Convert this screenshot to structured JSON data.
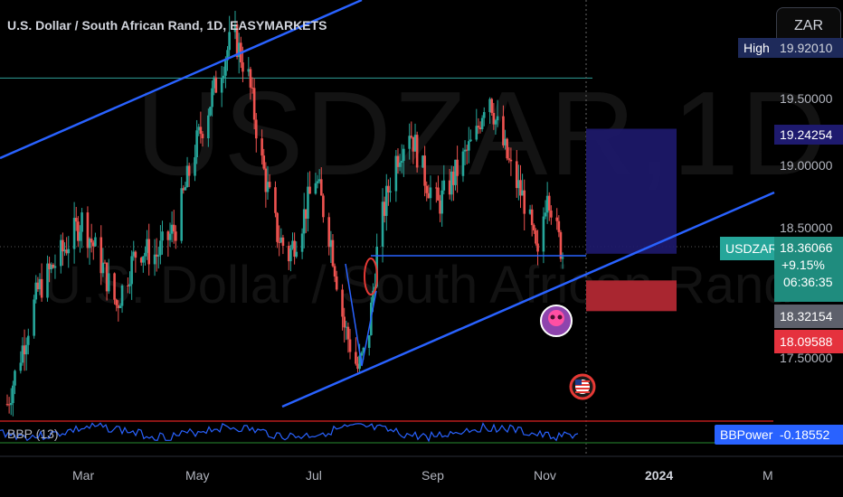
{
  "header": {
    "title": "U.S. Dollar / South African Rand, 1D, EASYMARKETS"
  },
  "watermark": {
    "symbol_tf": "USDZAR,1D",
    "name": "U.S. Dollar / South African Rand"
  },
  "currency_box": "ZAR",
  "price_axis": {
    "ticks": [
      "19.50000",
      "19.00000",
      "18.50000",
      "17.50000"
    ],
    "high_label": "High",
    "high_value": "19.92010",
    "target_value": "19.24254",
    "symbol": "USDZAR",
    "last_price": "18.36066",
    "change_pct": "+9.15%",
    "countdown": "06:36:35",
    "level_gray": "18.32154",
    "stop_value": "18.09588"
  },
  "time_axis": {
    "months": [
      "Mar",
      "May",
      "Jul",
      "Sep",
      "Nov",
      "2024",
      "M"
    ]
  },
  "indicator": {
    "name": "BBP (13)",
    "label": "BBPower",
    "value": "-0.18552"
  },
  "colors": {
    "up": "#26a69a",
    "down": "#ef5350",
    "trendline": "#2962ff",
    "target_zone": "#1e1a6e",
    "stop_zone": "#b22833",
    "indicator_line": "#2962ff"
  },
  "chart_data": {
    "type": "candlestick",
    "title": "U.S. Dollar / South African Rand, 1D, EASYMARKETS",
    "ylim": [
      17.25,
      20.1
    ],
    "x_range": [
      "2023-01-30",
      "2024-03-05"
    ],
    "anchors": [
      [
        "2023-01-30",
        17.3
      ],
      [
        "2023-02-05",
        17.6
      ],
      [
        "2023-02-15",
        18.1
      ],
      [
        "2023-03-01",
        18.4
      ],
      [
        "2023-03-10",
        18.6
      ],
      [
        "2023-03-20",
        18.3
      ],
      [
        "2023-03-28",
        18.0
      ],
      [
        "2023-04-08",
        18.4
      ],
      [
        "2023-04-18",
        18.35
      ],
      [
        "2023-04-28",
        18.55
      ],
      [
        "2023-05-08",
        19.1
      ],
      [
        "2023-05-20",
        19.6
      ],
      [
        "2023-05-28",
        19.92
      ],
      [
        "2023-06-05",
        19.6
      ],
      [
        "2023-06-12",
        19.0
      ],
      [
        "2023-06-20",
        18.5
      ],
      [
        "2023-06-26",
        18.35
      ],
      [
        "2023-07-02",
        18.55
      ],
      [
        "2023-07-10",
        18.9
      ],
      [
        "2023-07-18",
        18.45
      ],
      [
        "2023-07-25",
        17.85
      ],
      [
        "2023-08-01",
        17.55
      ],
      [
        "2023-08-06",
        17.7
      ],
      [
        "2023-08-12",
        18.5
      ],
      [
        "2023-08-20",
        19.0
      ],
      [
        "2023-08-28",
        19.25
      ],
      [
        "2023-09-05",
        18.9
      ],
      [
        "2023-09-12",
        18.7
      ],
      [
        "2023-09-22",
        18.95
      ],
      [
        "2023-10-02",
        19.2
      ],
      [
        "2023-10-08",
        19.55
      ],
      [
        "2023-10-12",
        19.3
      ],
      [
        "2023-10-20",
        18.95
      ],
      [
        "2023-10-28",
        18.7
      ],
      [
        "2023-11-03",
        18.3
      ],
      [
        "2023-11-08",
        18.85
      ],
      [
        "2023-11-12",
        18.55
      ],
      [
        "2023-11-16",
        18.36
      ]
    ],
    "drawings": {
      "channel_top": [
        [
          "2023-01-20",
          18.95
        ],
        [
          "2023-05-24",
          19.94
        ]
      ],
      "channel_bottom": [
        [
          "2023-06-18",
          16.9
        ],
        [
          "2024-01-30",
          18.8
        ]
      ],
      "horizontal_resistance": 19.6,
      "breakout_level": 18.38,
      "target_zone": [
        18.36066,
        19.24254
      ],
      "stop_zone": [
        18.09588,
        18.36066
      ]
    },
    "indicator": {
      "name": "BBP (13)",
      "last": -0.18552
    }
  }
}
